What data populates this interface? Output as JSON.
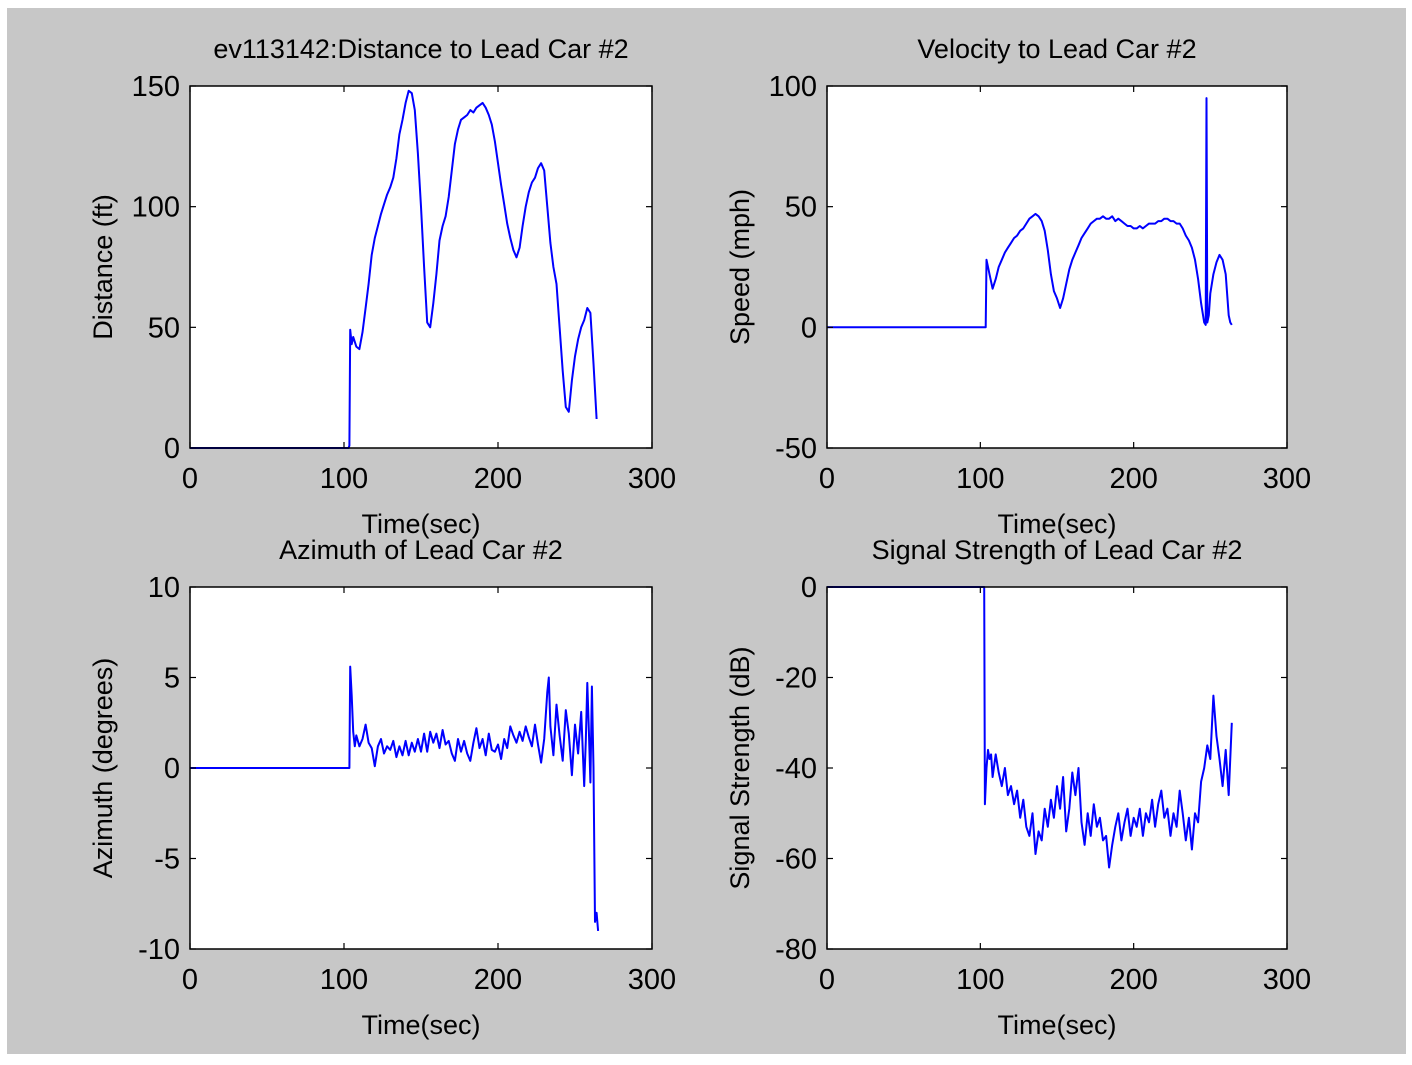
{
  "figure": {
    "background_color": "#c7c7c7",
    "axes_color": "#ffffff",
    "line_color": "#0000ff"
  },
  "chart_data": [
    {
      "type": "line",
      "title": "ev113142:Distance to Lead Car #2",
      "xlabel": "Time(sec)",
      "ylabel": "Distance (ft)",
      "xlim": [
        0,
        300
      ],
      "ylim": [
        0,
        150
      ],
      "xticks": [
        0,
        100,
        200,
        300
      ],
      "xtick_labels": [
        "0",
        "100",
        "200",
        "300"
      ],
      "yticks": [
        0,
        50,
        100,
        150
      ],
      "ytick_labels": [
        "0",
        "50",
        "100",
        "150"
      ],
      "series": [
        {
          "color": "#0000ff",
          "x": [
            0,
            103,
            103.5,
            104,
            105,
            106,
            107,
            108,
            110,
            112,
            114,
            116,
            118,
            120,
            122,
            124,
            126,
            128,
            130,
            132,
            134,
            136,
            138,
            140,
            142,
            144,
            146,
            148,
            150,
            152,
            154,
            156,
            158,
            160,
            162,
            164,
            166,
            168,
            170,
            172,
            174,
            176,
            178,
            180,
            182,
            184,
            186,
            188,
            190,
            192,
            194,
            196,
            198,
            200,
            202,
            204,
            206,
            208,
            210,
            212,
            214,
            216,
            218,
            220,
            222,
            224,
            226,
            228,
            230,
            232,
            234,
            236,
            238,
            240,
            242,
            244,
            246,
            248,
            250,
            252,
            254,
            256,
            258,
            260,
            262,
            264
          ],
          "y": [
            0,
            0,
            1,
            49,
            43,
            46,
            44,
            42,
            41,
            48,
            58,
            68,
            80,
            87,
            92,
            97,
            101,
            105,
            108,
            112,
            120,
            130,
            136,
            143,
            148,
            147,
            140,
            122,
            100,
            75,
            52,
            50,
            60,
            72,
            86,
            92,
            96,
            104,
            115,
            126,
            132,
            136,
            137,
            138,
            140,
            139,
            141,
            142,
            143,
            141,
            138,
            134,
            127,
            118,
            109,
            101,
            93,
            87,
            82,
            79,
            83,
            92,
            100,
            106,
            110,
            112,
            116,
            118,
            115,
            100,
            85,
            75,
            68,
            50,
            32,
            17,
            15,
            28,
            38,
            45,
            50,
            53,
            58,
            56,
            35,
            12
          ]
        }
      ]
    },
    {
      "type": "line",
      "title": "Velocity to Lead Car #2",
      "xlabel": "Time(sec)",
      "ylabel": "Speed (mph)",
      "xlim": [
        0,
        300
      ],
      "ylim": [
        -50,
        100
      ],
      "xticks": [
        0,
        100,
        200,
        300
      ],
      "xtick_labels": [
        "0",
        "100",
        "200",
        "300"
      ],
      "yticks": [
        -50,
        0,
        50,
        100
      ],
      "ytick_labels": [
        "-50",
        "0",
        "50",
        "100"
      ],
      "series": [
        {
          "color": "#0000ff",
          "x": [
            0,
            103,
            103.5,
            104,
            106,
            108,
            110,
            112,
            114,
            116,
            118,
            120,
            122,
            124,
            126,
            128,
            130,
            132,
            134,
            136,
            138,
            140,
            142,
            144,
            146,
            148,
            150,
            152,
            154,
            156,
            158,
            160,
            162,
            164,
            166,
            168,
            170,
            172,
            174,
            176,
            178,
            180,
            182,
            184,
            186,
            188,
            190,
            192,
            194,
            196,
            198,
            200,
            202,
            204,
            206,
            208,
            210,
            212,
            214,
            216,
            218,
            220,
            222,
            224,
            226,
            228,
            230,
            232,
            234,
            236,
            238,
            240,
            242,
            244,
            246,
            247,
            247.5,
            248,
            249,
            250,
            252,
            254,
            256,
            258,
            260,
            262,
            263,
            264
          ],
          "y": [
            0,
            0,
            0,
            28,
            22,
            16,
            20,
            25,
            28,
            31,
            33,
            35,
            37,
            38,
            40,
            41,
            43,
            45,
            46,
            47,
            46,
            44,
            40,
            32,
            22,
            15,
            12,
            8,
            12,
            18,
            24,
            28,
            31,
            34,
            37,
            39,
            41,
            43,
            44,
            45,
            45,
            46,
            45,
            45,
            46,
            44,
            45,
            44,
            43,
            42,
            42,
            41,
            41,
            42,
            41,
            42,
            43,
            43,
            43,
            44,
            44,
            45,
            45,
            44,
            44,
            43,
            43,
            41,
            38,
            36,
            33,
            28,
            20,
            10,
            2,
            1,
            95,
            2,
            5,
            14,
            22,
            27,
            30,
            28,
            22,
            5,
            2,
            1
          ]
        }
      ]
    },
    {
      "type": "line",
      "title": "Azimuth of Lead Car #2",
      "xlabel": "Time(sec)",
      "ylabel": "Azimuth (degrees)",
      "xlim": [
        0,
        300
      ],
      "ylim": [
        -10,
        10
      ],
      "xticks": [
        0,
        100,
        200,
        300
      ],
      "xtick_labels": [
        "0",
        "100",
        "200",
        "300"
      ],
      "yticks": [
        -10,
        -5,
        0,
        5,
        10
      ],
      "ytick_labels": [
        "-10",
        "-5",
        "0",
        "5",
        "10"
      ],
      "series": [
        {
          "color": "#0000ff",
          "x": [
            0,
            103,
            103.5,
            104,
            105,
            106,
            107,
            108,
            110,
            112,
            114,
            116,
            118,
            120,
            122,
            124,
            126,
            128,
            130,
            132,
            134,
            136,
            138,
            140,
            142,
            144,
            146,
            148,
            150,
            152,
            154,
            156,
            158,
            160,
            162,
            164,
            166,
            168,
            170,
            172,
            174,
            176,
            178,
            180,
            182,
            184,
            186,
            188,
            190,
            192,
            194,
            196,
            198,
            200,
            202,
            204,
            206,
            208,
            210,
            212,
            214,
            216,
            218,
            220,
            222,
            224,
            226,
            228,
            230,
            232,
            233,
            234,
            236,
            238,
            240,
            242,
            244,
            246,
            248,
            250,
            252,
            254,
            256,
            257,
            258,
            259,
            260,
            261,
            262,
            263,
            264,
            265
          ],
          "y": [
            0,
            0,
            0,
            5.6,
            4.0,
            2.0,
            1.2,
            1.8,
            1.2,
            1.6,
            2.4,
            1.4,
            1.1,
            0.1,
            1.2,
            1.6,
            0.8,
            1.2,
            1.0,
            1.5,
            0.6,
            1.2,
            0.7,
            1.5,
            0.7,
            1.4,
            0.9,
            1.6,
            0.9,
            1.9,
            0.9,
            2.0,
            1.4,
            1.9,
            1.1,
            2.1,
            1.3,
            1.5,
            0.8,
            0.4,
            1.6,
            0.9,
            1.5,
            0.8,
            0.4,
            1.4,
            2.2,
            1.1,
            1.6,
            0.7,
            1.9,
            1.0,
            0.9,
            1.3,
            0.5,
            1.6,
            1.1,
            2.3,
            1.8,
            1.4,
            2.0,
            1.5,
            2.3,
            1.7,
            1.2,
            2.4,
            1.3,
            0.3,
            1.6,
            4.2,
            5.0,
            2.3,
            0.7,
            3.5,
            1.8,
            0.4,
            3.2,
            1.9,
            -0.4,
            2.4,
            0.8,
            3.1,
            -1.0,
            1.5,
            4.7,
            2.0,
            -0.8,
            4.5,
            0.0,
            -8.5,
            -8.0,
            -9.0
          ]
        }
      ]
    },
    {
      "type": "line",
      "title": "Signal Strength of Lead Car #2",
      "xlabel": "Time(sec)",
      "ylabel": "Signal Strength (dB)",
      "xlim": [
        0,
        300
      ],
      "ylim": [
        -80,
        0
      ],
      "xticks": [
        0,
        100,
        200,
        300
      ],
      "xtick_labels": [
        "0",
        "100",
        "200",
        "300"
      ],
      "yticks": [
        -80,
        -60,
        -40,
        -20,
        0
      ],
      "ytick_labels": [
        "-80",
        "-60",
        "-40",
        "-20",
        "0"
      ],
      "series": [
        {
          "color": "#0000ff",
          "x": [
            0,
            102,
            102.5,
            103,
            104,
            105,
            106,
            107,
            108,
            110,
            112,
            114,
            116,
            118,
            120,
            122,
            124,
            126,
            128,
            130,
            132,
            134,
            136,
            138,
            140,
            142,
            144,
            146,
            148,
            150,
            152,
            154,
            156,
            158,
            160,
            162,
            164,
            166,
            168,
            170,
            172,
            174,
            176,
            178,
            180,
            182,
            184,
            186,
            188,
            190,
            192,
            194,
            196,
            198,
            200,
            202,
            204,
            206,
            208,
            210,
            212,
            214,
            216,
            218,
            220,
            222,
            224,
            226,
            228,
            230,
            232,
            234,
            236,
            238,
            240,
            242,
            244,
            246,
            248,
            250,
            252,
            254,
            256,
            258,
            260,
            262,
            264
          ],
          "y": [
            0,
            0,
            0,
            -48,
            -40,
            -36,
            -38,
            -37,
            -42,
            -37,
            -41,
            -44,
            -40,
            -46,
            -44,
            -48,
            -45,
            -51,
            -47,
            -53,
            -55,
            -50,
            -59,
            -54,
            -56,
            -49,
            -53,
            -47,
            -51,
            -44,
            -49,
            -42,
            -54,
            -49,
            -41,
            -46,
            -40,
            -52,
            -57,
            -50,
            -55,
            -48,
            -53,
            -51,
            -56,
            -55,
            -62,
            -57,
            -53,
            -50,
            -56,
            -52,
            -49,
            -55,
            -51,
            -53,
            -49,
            -55,
            -50,
            -52,
            -47,
            -53,
            -48,
            -45,
            -51,
            -49,
            -55,
            -50,
            -53,
            -45,
            -50,
            -56,
            -51,
            -58,
            -50,
            -52,
            -43,
            -40,
            -35,
            -38,
            -24,
            -33,
            -38,
            -44,
            -36,
            -46,
            -30
          ]
        }
      ]
    }
  ]
}
